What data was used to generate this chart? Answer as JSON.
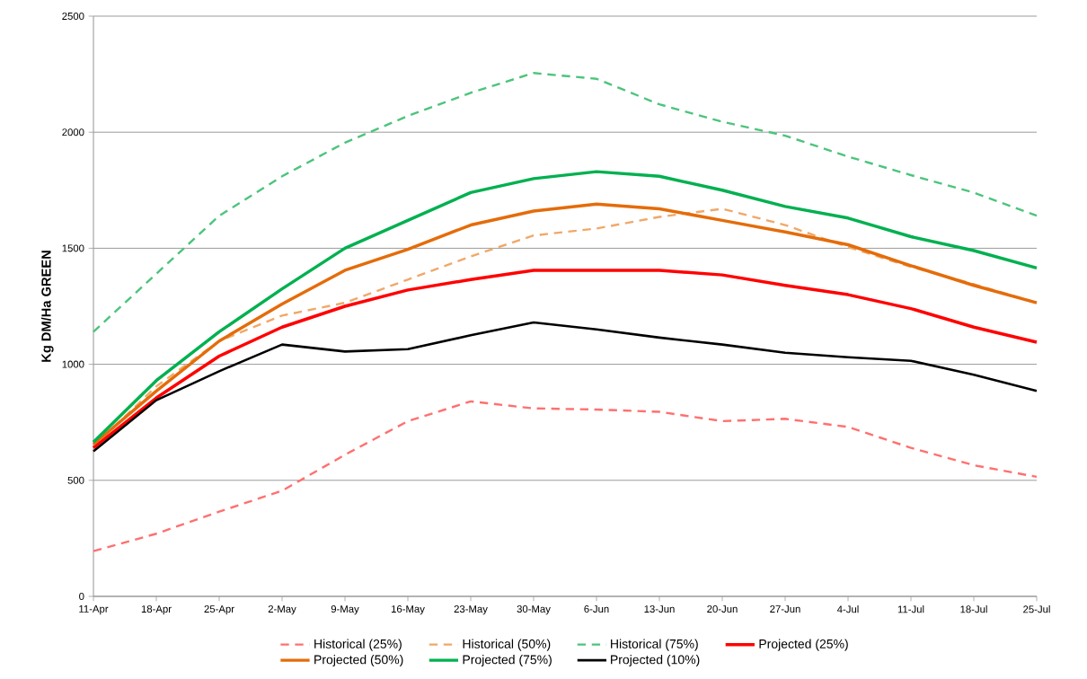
{
  "chart_data": {
    "type": "line",
    "ylabel": "Kg DM/Ha GREEN",
    "categories": [
      "11-Apr",
      "18-Apr",
      "25-Apr",
      "2-May",
      "9-May",
      "16-May",
      "23-May",
      "30-May",
      "6-Jun",
      "13-Jun",
      "20-Jun",
      "27-Jun",
      "4-Jul",
      "11-Jul",
      "18-Jul",
      "25-Jul"
    ],
    "series": [
      {
        "name": "Historical (25%)",
        "color": "#ff7070",
        "line_style": "dashed",
        "values": [
          195,
          270,
          365,
          455,
          610,
          755,
          840,
          810,
          805,
          795,
          755,
          765,
          730,
          640,
          565,
          515
        ]
      },
      {
        "name": "Historical (50%)",
        "color": "#f0a868",
        "line_style": "dashed",
        "values": [
          645,
          905,
          1100,
          1210,
          1265,
          1365,
          1465,
          1555,
          1585,
          1635,
          1670,
          1600,
          1505,
          1420,
          1345,
          1265
        ]
      },
      {
        "name": "Historical (75%)",
        "color": "#4cc47c",
        "line_style": "dashed",
        "values": [
          1140,
          1390,
          1640,
          1810,
          1955,
          2070,
          2170,
          2255,
          2230,
          2120,
          2045,
          1985,
          1895,
          1815,
          1740,
          1640
        ]
      },
      {
        "name": "Projected (25%)",
        "color": "#ff0000",
        "line_style": "solid",
        "values": [
          640,
          855,
          1035,
          1160,
          1250,
          1320,
          1365,
          1405,
          1405,
          1405,
          1385,
          1340,
          1300,
          1240,
          1160,
          1095
        ]
      },
      {
        "name": "Projected (50%)",
        "color": "#e46c0a",
        "line_style": "solid",
        "values": [
          655,
          885,
          1100,
          1260,
          1405,
          1495,
          1600,
          1660,
          1690,
          1670,
          1620,
          1570,
          1515,
          1425,
          1340,
          1265
        ]
      },
      {
        "name": "Projected (75%)",
        "color": "#00b050",
        "line_style": "solid",
        "values": [
          665,
          930,
          1140,
          1325,
          1500,
          1620,
          1740,
          1800,
          1830,
          1810,
          1750,
          1680,
          1630,
          1550,
          1490,
          1415
        ]
      },
      {
        "name": "Projected (10%)",
        "color": "#000000",
        "line_style": "solid",
        "values": [
          625,
          845,
          970,
          1085,
          1055,
          1065,
          1125,
          1180,
          1150,
          1115,
          1085,
          1050,
          1030,
          1015,
          955,
          885
        ]
      }
    ],
    "ylim": [
      0,
      2500
    ],
    "yticks": [
      0,
      500,
      1000,
      1500,
      2000,
      2500
    ],
    "grid": "y",
    "legend": "bottom",
    "marker": "none"
  }
}
